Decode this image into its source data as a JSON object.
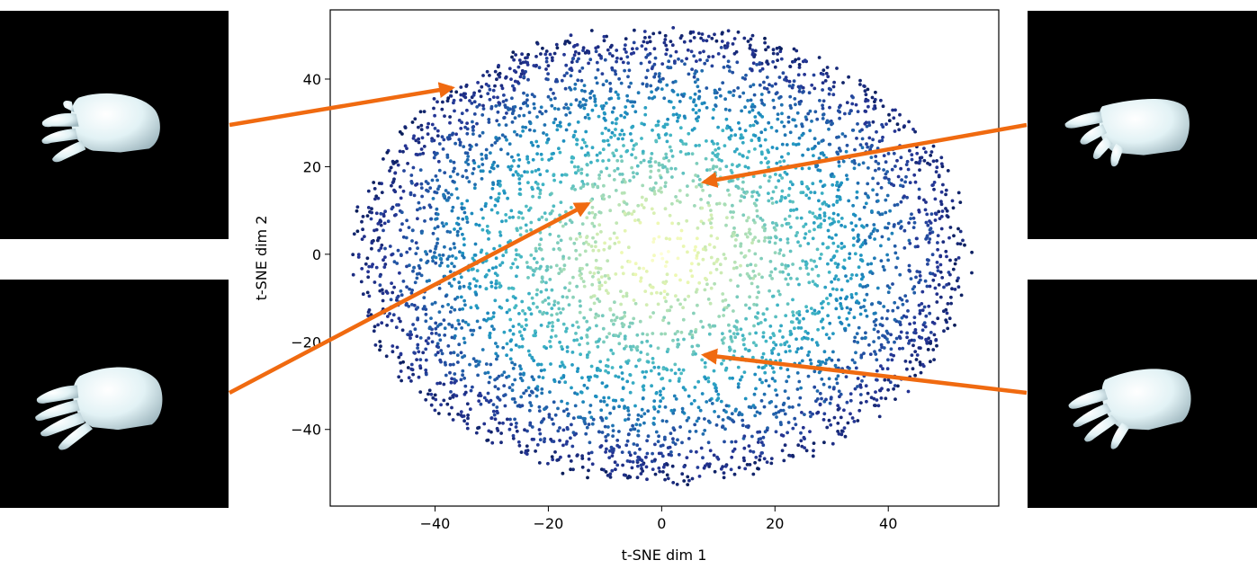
{
  "chart_data": {
    "type": "scatter",
    "title": "",
    "xlabel": "t-SNE dim 1",
    "ylabel": "t-SNE dim 2",
    "xlim": [
      -58.5,
      59.5
    ],
    "ylim": [
      -57.5,
      55.8
    ],
    "xticks": [
      -40,
      -20,
      0,
      20,
      40
    ],
    "yticks": [
      -40,
      -20,
      0,
      20,
      40
    ],
    "xtick_labels": [
      "−40",
      "−20",
      "0",
      "20",
      "40"
    ],
    "ytick_labels": [
      "−40",
      "−20",
      "0",
      "20",
      "40"
    ],
    "grid": false,
    "legend": "none",
    "colormap": "YlGnBu (density-coloured points)",
    "num_points": 4500,
    "point_cloud": {
      "center": [
        0,
        0
      ],
      "radius_x": 54,
      "radius_y": 52
    },
    "annotations": [
      {
        "thumbnail": "hand-left-top",
        "arrow_to": [
          -37,
          38
        ]
      },
      {
        "thumbnail": "hand-left-bottom",
        "arrow_to": [
          -13,
          11.5
        ]
      },
      {
        "thumbnail": "hand-right-top",
        "arrow_to": [
          7.5,
          16.5
        ]
      },
      {
        "thumbnail": "hand-right-bottom",
        "arrow_to": [
          7.5,
          -23
        ]
      }
    ],
    "colors": {
      "arrow": "#f06a10",
      "thumb_bg": "#000000",
      "hand": "#e6f4f6",
      "hand_shadow": "#9fb7bf",
      "cmap": [
        "#ffffd9",
        "#edf8b1",
        "#c7e9b4",
        "#7fcdbb",
        "#41b6c4",
        "#1d91c0",
        "#225ea8",
        "#253494",
        "#081d58"
      ]
    }
  }
}
